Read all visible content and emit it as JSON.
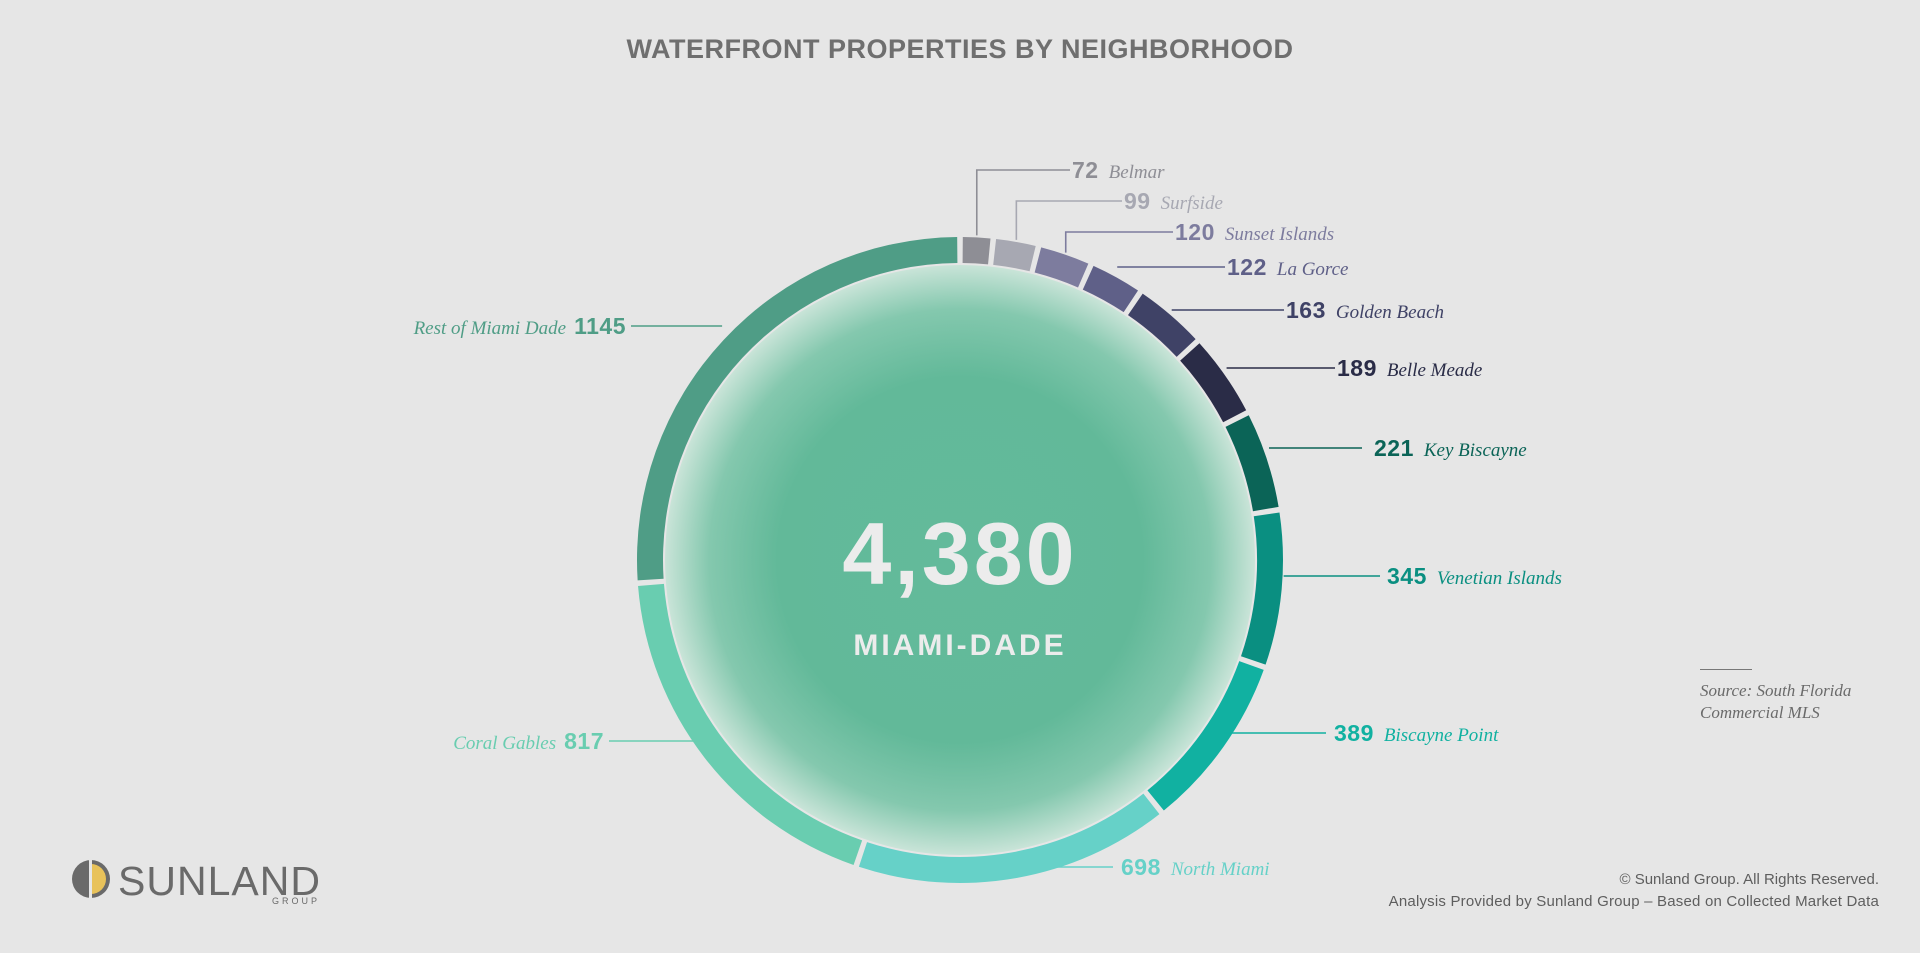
{
  "chart_data": {
    "type": "donut",
    "title": "WATERFRONT PROPERTIES BY NEIGHBORHOOD",
    "center_value": "4,380",
    "center_label": "MIAMI-DADE",
    "segments": [
      {
        "name": "Belmar",
        "value": 72,
        "color": "#8e8e95"
      },
      {
        "name": "Surfside",
        "value": 99,
        "color": "#a7a8b2"
      },
      {
        "name": "Sunset Islands",
        "value": 120,
        "color": "#7d7c9e"
      },
      {
        "name": "La Gorce",
        "value": 122,
        "color": "#5f6088"
      },
      {
        "name": "Golden Beach",
        "value": 163,
        "color": "#3f4266"
      },
      {
        "name": "Belle Meade",
        "value": 189,
        "color": "#2a2c47"
      },
      {
        "name": "Key Biscayne",
        "value": 221,
        "color": "#0b6457"
      },
      {
        "name": "Venetian Islands",
        "value": 345,
        "color": "#0a8f81"
      },
      {
        "name": "Biscayne Point",
        "value": 389,
        "color": "#11b1a1"
      },
      {
        "name": "North Miami",
        "value": 698,
        "color": "#66d1c8"
      },
      {
        "name": "Coral Gables",
        "value": 817,
        "color": "#69cdb0"
      },
      {
        "name": "Rest of Miami Dade",
        "value": 1145,
        "color": "#4f9d86"
      }
    ]
  },
  "source": {
    "text": "Source: South Florida\nCommercial MLS"
  },
  "logo": {
    "name": "SUNLAND",
    "sub": "GROUP"
  },
  "footer": {
    "copyright": "© Sunland Group. All Rights Reserved.",
    "analysis": "Analysis Provided by Sunland Group – Based on Collected Market Data"
  }
}
